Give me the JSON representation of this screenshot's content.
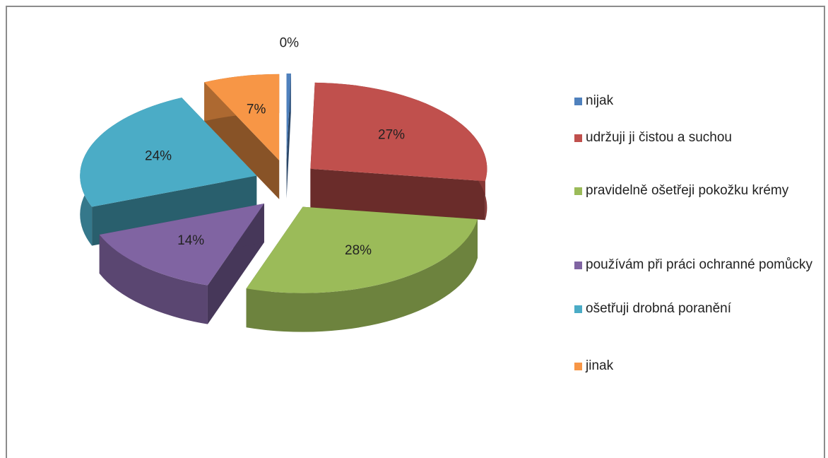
{
  "chart_data": {
    "type": "pie",
    "categories": [
      "nijak",
      "udržuji ji čistou a suchou",
      "pravidelně ošetřeji pokožku krémy",
      "používám při práci ochranné pomůcky",
      "ošetřuji drobná poranění",
      "jinak"
    ],
    "values": [
      0.4,
      27,
      28,
      14,
      24,
      7
    ],
    "value_labels": [
      "0%",
      "27%",
      "28%",
      "14%",
      "24%",
      "7%"
    ],
    "colors": [
      "#4f81bd",
      "#c0504d",
      "#9bbb59",
      "#8064a2",
      "#4bacc6",
      "#f79646"
    ],
    "legend": "right"
  }
}
